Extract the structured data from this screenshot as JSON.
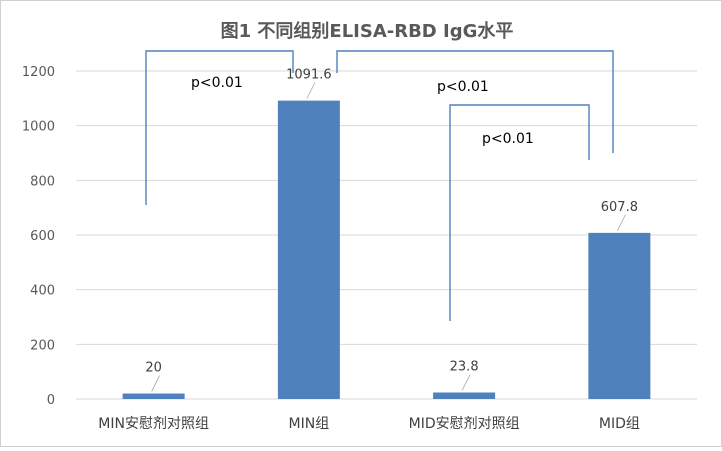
{
  "chart_data": {
    "type": "bar",
    "title": "图1 不同组别ELISA-RBD IgG水平",
    "xlabel": "",
    "ylabel": "",
    "categories": [
      "MIN安慰剂对照组",
      "MIN组",
      "MID安慰剂对照组",
      "MID组"
    ],
    "values": [
      20,
      1091.6,
      23.8,
      607.8
    ],
    "data_labels": [
      "20",
      "1091.6",
      "23.8",
      "607.8"
    ],
    "ylim": [
      0,
      1200
    ],
    "yticks": [
      0,
      200,
      400,
      600,
      800,
      1000,
      1200
    ],
    "grid": true,
    "bar_color": "#4f81bd",
    "annotations": [
      {
        "text": "p<0.01",
        "from": "MIN安慰剂对照组",
        "to": "MID组"
      },
      {
        "text": "p<0.01",
        "from": "MID安慰剂对照组",
        "to": "MID组"
      },
      {
        "text": "p<0.01",
        "from": "MID安慰剂对照组",
        "to": "MID组"
      }
    ]
  }
}
